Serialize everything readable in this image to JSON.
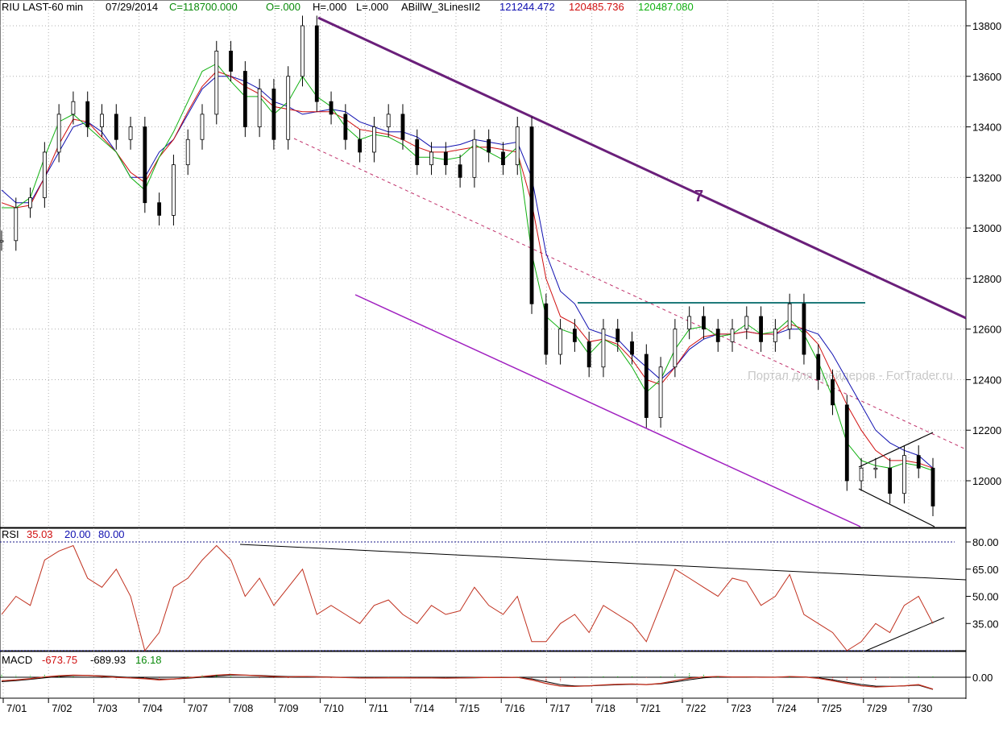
{
  "header": {
    "symbol": "RIU LAST-60 min",
    "date": "07/29/2014",
    "close": "C=118700.000",
    "open": "O=.000",
    "high": "H=.000",
    "low": "L=.000",
    "indicator_name": "ABillW_3LinesII2",
    "ind_blue": "121244.472",
    "ind_red": "120485.736",
    "ind_green": "120487.080"
  },
  "rsi_header": {
    "name": "RSI",
    "value": "35.03",
    "low": "20.00",
    "high": "80.00"
  },
  "macd_header": {
    "name": "MACD",
    "v1": "-673.75",
    "v2": "-689.93",
    "v3": "16.18"
  },
  "annotations": {
    "wave_label": "7",
    "watermark": "Портал для трейдеров - ForTrader.ru"
  },
  "colors": {
    "price": "#000000",
    "blue": "#1010b0",
    "red": "#d01010",
    "green": "#10b010",
    "purple": "#6a1f7a",
    "teal": "#1f7a7a",
    "rsi": "#c0301e"
  },
  "chart_data": [
    {
      "type": "line",
      "title": "RIU LAST-60 min",
      "y_tick_labels": [
        "13800",
        "13600",
        "13400",
        "13200",
        "13000",
        "12800",
        "12600",
        "12400",
        "12200",
        "12000"
      ],
      "ylim": [
        11800,
        13900
      ],
      "x_tick_labels": [
        "7/01",
        "7/02",
        "7/03",
        "7/04",
        "7/07",
        "7/08",
        "7/09",
        "7/10",
        "7/11",
        "7/14",
        "7/15",
        "7/16",
        "7/17",
        "7/18",
        "7/21",
        "7/22",
        "7/23",
        "7/24",
        "7/25",
        "7/29",
        "7/30"
      ],
      "series": [
        {
          "name": "price",
          "values": [
            12950,
            13080,
            13120,
            13300,
            13450,
            13500,
            13400,
            13450,
            13350,
            13400,
            13100,
            13050,
            13250,
            13350,
            13450,
            13700,
            13620,
            13400,
            13550,
            13350,
            13600,
            13800,
            13500,
            13450,
            13350,
            13300,
            13400,
            13450,
            13350,
            13250,
            13300,
            13250,
            13200,
            13350,
            13300,
            13250,
            13400,
            12700,
            12500,
            12600,
            12550,
            12450,
            12600,
            12550,
            12500,
            12250,
            12450,
            12600,
            12650,
            12600,
            12550,
            12600,
            12650,
            12550,
            12600,
            12700,
            12500,
            12400,
            12300,
            12000,
            12050,
            12050,
            11950,
            12100,
            12050,
            11900
          ]
        },
        {
          "name": "blue",
          "values": [
            13150,
            13100,
            13100,
            13200,
            13300,
            13400,
            13420,
            13380,
            13300,
            13200,
            13200,
            13300,
            13350,
            13450,
            13550,
            13600,
            13600,
            13580,
            13550,
            13500,
            13480,
            13450,
            13460,
            13470,
            13460,
            13420,
            13400,
            13380,
            13380,
            13360,
            13320,
            13320,
            13330,
            13350,
            13340,
            13330,
            13340,
            13200,
            12900,
            12750,
            12700,
            12600,
            12580,
            12560,
            12500,
            12450,
            12400,
            12450,
            12520,
            12560,
            12580,
            12580,
            12590,
            12580,
            12580,
            12600,
            12600,
            12580,
            12500,
            12400,
            12300,
            12200,
            12150,
            12120,
            12100,
            12050
          ]
        },
        {
          "name": "red",
          "values": [
            13100,
            13080,
            13090,
            13200,
            13330,
            13430,
            13420,
            13360,
            13300,
            13220,
            13180,
            13280,
            13350,
            13460,
            13560,
            13620,
            13600,
            13560,
            13530,
            13480,
            13470,
            13460,
            13460,
            13460,
            13430,
            13390,
            13380,
            13370,
            13350,
            13320,
            13300,
            13300,
            13310,
            13320,
            13320,
            13310,
            13300,
            13100,
            12800,
            12650,
            12620,
            12550,
            12560,
            12540,
            12480,
            12400,
            12380,
            12450,
            12530,
            12570,
            12580,
            12580,
            12590,
            12580,
            12580,
            12620,
            12600,
            12540,
            12420,
            12300,
            12200,
            12120,
            12080,
            12080,
            12070,
            12050
          ]
        },
        {
          "name": "green",
          "values": [
            13080,
            13080,
            13120,
            13280,
            13420,
            13450,
            13400,
            13350,
            13300,
            13200,
            13150,
            13280,
            13380,
            13500,
            13620,
            13650,
            13580,
            13520,
            13520,
            13450,
            13500,
            13600,
            13520,
            13480,
            13400,
            13350,
            13370,
            13360,
            13330,
            13280,
            13280,
            13270,
            13280,
            13330,
            13300,
            13270,
            13320,
            12900,
            12650,
            12600,
            12580,
            12500,
            12560,
            12530,
            12450,
            12350,
            12400,
            12520,
            12600,
            12610,
            12570,
            12580,
            12620,
            12580,
            12590,
            12640,
            12580,
            12470,
            12330,
            12150,
            12080,
            12060,
            12050,
            12070,
            12060,
            12040
          ]
        }
      ]
    },
    {
      "type": "line",
      "title": "RSI",
      "y_tick_labels": [
        "80.00",
        "65.00",
        "50.00",
        "35.00"
      ],
      "ylim": [
        15,
        85
      ],
      "series": [
        {
          "name": "RSI",
          "values": [
            40,
            50,
            45,
            70,
            75,
            78,
            60,
            55,
            65,
            50,
            20,
            30,
            55,
            60,
            70,
            78,
            70,
            50,
            60,
            45,
            55,
            65,
            40,
            45,
            40,
            35,
            45,
            48,
            40,
            35,
            45,
            40,
            42,
            55,
            45,
            40,
            50,
            25,
            25,
            35,
            40,
            30,
            45,
            40,
            35,
            25,
            45,
            65,
            60,
            55,
            50,
            60,
            58,
            45,
            50,
            62,
            40,
            35,
            30,
            20,
            25,
            35,
            30,
            45,
            50,
            35
          ]
        }
      ]
    },
    {
      "type": "line",
      "title": "MACD",
      "y_tick_labels": [
        "0.00"
      ],
      "series": [
        {
          "name": "MACD",
          "values": [
            -200,
            -150,
            -80,
            20,
            80,
            120,
            100,
            60,
            -10,
            -40,
            -80,
            -150,
            -100,
            -30,
            40,
            120,
            160,
            120,
            80,
            40,
            20,
            40,
            20,
            0,
            -20,
            -40,
            -40,
            -30,
            -30,
            -40,
            -40,
            -50,
            -40,
            -20,
            -10,
            -20,
            0,
            -150,
            -350,
            -500,
            -520,
            -480,
            -430,
            -400,
            -380,
            -420,
            -350,
            -200,
            -60,
            20,
            40,
            20,
            20,
            0,
            0,
            40,
            20,
            -60,
            -200,
            -350,
            -480,
            -550,
            -520,
            -480,
            -420,
            -673.75
          ]
        },
        {
          "name": "Signal",
          "values": [
            -250,
            -190,
            -120,
            -30,
            40,
            90,
            100,
            80,
            30,
            -10,
            -50,
            -100,
            -100,
            -60,
            0,
            70,
            120,
            120,
            100,
            70,
            40,
            40,
            30,
            15,
            -5,
            -25,
            -35,
            -33,
            -32,
            -36,
            -38,
            -45,
            -42,
            -30,
            -18,
            -20,
            -8,
            -90,
            -250,
            -420,
            -490,
            -485,
            -455,
            -425,
            -400,
            -410,
            -375,
            -270,
            -140,
            -30,
            20,
            22,
            20,
            8,
            4,
            25,
            22,
            -30,
            -140,
            -280,
            -410,
            -500,
            -510,
            -490,
            -450,
            -689.93
          ]
        }
      ]
    }
  ]
}
